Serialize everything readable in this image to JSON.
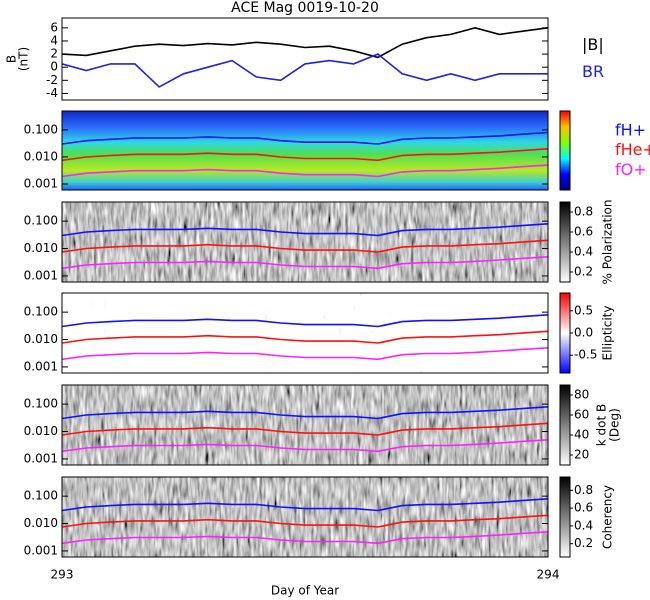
{
  "chart_data": [
    {
      "type": "line",
      "title": "ACE Mag 0019-10-20",
      "ylabel": [
        "B",
        "(nT)"
      ],
      "legend": true,
      "xlim": [
        293,
        294
      ],
      "ylim": [
        -5,
        7.5
      ],
      "yticks": [
        -4,
        -2,
        0,
        2,
        4,
        6
      ],
      "x": [
        293,
        293.05,
        293.1,
        293.15,
        293.2,
        293.25,
        293.3,
        293.35,
        293.4,
        293.45,
        293.5,
        293.55,
        293.6,
        293.65,
        293.7,
        293.75,
        293.8,
        293.85,
        293.9,
        293.95,
        294
      ],
      "series": [
        {
          "name": "|B|",
          "color": "#000000",
          "values": [
            2,
            1.8,
            2.5,
            3.2,
            3.5,
            3.3,
            3.6,
            3.4,
            3.8,
            3.5,
            3,
            3.2,
            2.5,
            1.5,
            3.5,
            4.5,
            5,
            6,
            5,
            5.5,
            6
          ]
        },
        {
          "name": "BR",
          "color": "#2020e0",
          "values": [
            0.5,
            -0.5,
            0.5,
            0.5,
            -3,
            -1,
            0,
            1,
            -1.5,
            -2,
            0.5,
            1,
            0.5,
            2,
            -1,
            -2,
            -1,
            -2,
            -1,
            -1,
            -1
          ]
        }
      ]
    },
    {
      "type": "line",
      "ylog": true,
      "legend": true,
      "background": "jet",
      "colorbar": {
        "colormap": "jet"
      },
      "xlim": [
        293,
        294
      ],
      "ylim": [
        0.0006,
        0.5
      ],
      "yticks": [
        0.001,
        {
          "value": 0.01,
          "label": "0.010"
        },
        {
          "value": 0.1,
          "label": "0.100"
        }
      ],
      "x": [
        293,
        293.05,
        293.1,
        293.15,
        293.2,
        293.25,
        293.3,
        293.35,
        293.4,
        293.45,
        293.5,
        293.55,
        293.6,
        293.65,
        293.7,
        293.75,
        293.8,
        293.85,
        293.9,
        293.95,
        294
      ],
      "series": [
        {
          "name": "fH+",
          "color": "#1010ff",
          "values": [
            0.03,
            0.04,
            0.045,
            0.05,
            0.05,
            0.05,
            0.055,
            0.05,
            0.05,
            0.04,
            0.035,
            0.035,
            0.035,
            0.03,
            0.045,
            0.05,
            0.05,
            0.055,
            0.06,
            0.07,
            0.08
          ]
        },
        {
          "name": "fHe+",
          "color": "#ff1010",
          "values": [
            0.0075,
            0.01,
            0.0113,
            0.0125,
            0.0125,
            0.0125,
            0.0138,
            0.0125,
            0.0125,
            0.01,
            0.0088,
            0.0088,
            0.0088,
            0.0075,
            0.0113,
            0.0125,
            0.0125,
            0.0138,
            0.015,
            0.0175,
            0.02
          ]
        },
        {
          "name": "fO+",
          "color": "#ff20ff",
          "values": [
            0.0019,
            0.0025,
            0.0028,
            0.0031,
            0.0031,
            0.0031,
            0.0034,
            0.0031,
            0.0031,
            0.0025,
            0.0022,
            0.0022,
            0.0022,
            0.0019,
            0.0028,
            0.0031,
            0.0031,
            0.0034,
            0.0038,
            0.0044,
            0.005
          ]
        }
      ]
    },
    {
      "type": "line",
      "ylog": true,
      "background": "gray",
      "colorbar": {
        "colormap": "gray",
        "lim": [
          0.1,
          0.9
        ],
        "ticks": [
          0.2,
          0.4,
          0.6,
          0.8
        ],
        "label": [
          "% Polarization"
        ]
      },
      "xlim": [
        293,
        294
      ],
      "ylim": [
        0.0006,
        0.5
      ],
      "yticks": [
        0.001,
        {
          "value": 0.01,
          "label": "0.010"
        },
        {
          "value": 0.1,
          "label": "0.100"
        }
      ],
      "x": [
        293,
        293.05,
        293.1,
        293.15,
        293.2,
        293.25,
        293.3,
        293.35,
        293.4,
        293.45,
        293.5,
        293.55,
        293.6,
        293.65,
        293.7,
        293.75,
        293.8,
        293.85,
        293.9,
        293.95,
        294
      ],
      "series": [
        {
          "name": "fH+",
          "color": "#1010ff",
          "values": [
            0.03,
            0.04,
            0.045,
            0.05,
            0.05,
            0.05,
            0.055,
            0.05,
            0.05,
            0.04,
            0.035,
            0.035,
            0.035,
            0.03,
            0.045,
            0.05,
            0.05,
            0.055,
            0.06,
            0.07,
            0.08
          ]
        },
        {
          "name": "fHe+",
          "color": "#ff1010",
          "values": [
            0.0075,
            0.01,
            0.0113,
            0.0125,
            0.0125,
            0.0125,
            0.0138,
            0.0125,
            0.0125,
            0.01,
            0.0088,
            0.0088,
            0.0088,
            0.0075,
            0.0113,
            0.0125,
            0.0125,
            0.0138,
            0.015,
            0.0175,
            0.02
          ]
        },
        {
          "name": "fO+",
          "color": "#ff20ff",
          "values": [
            0.0019,
            0.0025,
            0.0028,
            0.0031,
            0.0031,
            0.0031,
            0.0034,
            0.0031,
            0.0031,
            0.0025,
            0.0022,
            0.0022,
            0.0022,
            0.0019,
            0.0028,
            0.0031,
            0.0031,
            0.0034,
            0.0038,
            0.0044,
            0.005
          ]
        }
      ]
    },
    {
      "type": "line",
      "ylog": true,
      "background": "rwb",
      "colorbar": {
        "colormap": "rwb",
        "lim": [
          -0.9,
          0.9
        ],
        "ticks": [
          0.5,
          {
            "value": 0,
            "label": "0.0"
          },
          -0.5
        ],
        "label": [
          "Ellipticity"
        ]
      },
      "xlim": [
        293,
        294
      ],
      "ylim": [
        0.0006,
        0.5
      ],
      "yticks": [
        0.001,
        {
          "value": 0.01,
          "label": "0.010"
        },
        {
          "value": 0.1,
          "label": "0.100"
        }
      ],
      "x": [
        293,
        293.05,
        293.1,
        293.15,
        293.2,
        293.25,
        293.3,
        293.35,
        293.4,
        293.45,
        293.5,
        293.55,
        293.6,
        293.65,
        293.7,
        293.75,
        293.8,
        293.85,
        293.9,
        293.95,
        294
      ],
      "series": [
        {
          "name": "fH+",
          "color": "#1010ff",
          "values": [
            0.03,
            0.04,
            0.045,
            0.05,
            0.05,
            0.05,
            0.055,
            0.05,
            0.05,
            0.04,
            0.035,
            0.035,
            0.035,
            0.03,
            0.045,
            0.05,
            0.05,
            0.055,
            0.06,
            0.07,
            0.08
          ]
        },
        {
          "name": "fHe+",
          "color": "#ff1010",
          "values": [
            0.0075,
            0.01,
            0.0113,
            0.0125,
            0.0125,
            0.0125,
            0.0138,
            0.0125,
            0.0125,
            0.01,
            0.0088,
            0.0088,
            0.0088,
            0.0075,
            0.0113,
            0.0125,
            0.0125,
            0.0138,
            0.015,
            0.0175,
            0.02
          ]
        },
        {
          "name": "fO+",
          "color": "#ff20ff",
          "values": [
            0.0019,
            0.0025,
            0.0028,
            0.0031,
            0.0031,
            0.0031,
            0.0034,
            0.0031,
            0.0031,
            0.0025,
            0.0022,
            0.0022,
            0.0022,
            0.0019,
            0.0028,
            0.0031,
            0.0031,
            0.0034,
            0.0038,
            0.0044,
            0.005
          ]
        }
      ]
    },
    {
      "type": "line",
      "ylog": true,
      "background": "gray",
      "colorbar": {
        "colormap": "gray",
        "lim": [
          10,
          90
        ],
        "ticks": [
          20,
          40,
          60,
          80
        ],
        "label": [
          "k dot B",
          "(Deg)"
        ]
      },
      "xlim": [
        293,
        294
      ],
      "ylim": [
        0.0006,
        0.5
      ],
      "yticks": [
        0.001,
        {
          "value": 0.01,
          "label": "0.010"
        },
        {
          "value": 0.1,
          "label": "0.100"
        }
      ],
      "x": [
        293,
        293.05,
        293.1,
        293.15,
        293.2,
        293.25,
        293.3,
        293.35,
        293.4,
        293.45,
        293.5,
        293.55,
        293.6,
        293.65,
        293.7,
        293.75,
        293.8,
        293.85,
        293.9,
        293.95,
        294
      ],
      "series": [
        {
          "name": "fH+",
          "color": "#1010ff",
          "values": [
            0.03,
            0.04,
            0.045,
            0.05,
            0.05,
            0.05,
            0.055,
            0.05,
            0.05,
            0.04,
            0.035,
            0.035,
            0.035,
            0.03,
            0.045,
            0.05,
            0.05,
            0.055,
            0.06,
            0.07,
            0.08
          ]
        },
        {
          "name": "fHe+",
          "color": "#ff1010",
          "values": [
            0.0075,
            0.01,
            0.0113,
            0.0125,
            0.0125,
            0.0125,
            0.0138,
            0.0125,
            0.0125,
            0.01,
            0.0088,
            0.0088,
            0.0088,
            0.0075,
            0.0113,
            0.0125,
            0.0125,
            0.0138,
            0.015,
            0.0175,
            0.02
          ]
        },
        {
          "name": "fO+",
          "color": "#ff20ff",
          "values": [
            0.0019,
            0.0025,
            0.0028,
            0.0031,
            0.0031,
            0.0031,
            0.0034,
            0.0031,
            0.0031,
            0.0025,
            0.0022,
            0.0022,
            0.0022,
            0.0019,
            0.0028,
            0.0031,
            0.0031,
            0.0034,
            0.0038,
            0.0044,
            0.005
          ]
        }
      ]
    },
    {
      "type": "line",
      "ylog": true,
      "background": "gray",
      "colorbar": {
        "colormap": "gray",
        "lim": [
          0.05,
          0.95
        ],
        "ticks": [
          0.2,
          0.4,
          0.6,
          0.8
        ],
        "label": [
          "Coherency"
        ]
      },
      "xlim": [
        293,
        294
      ],
      "ylim": [
        0.0006,
        0.5
      ],
      "xticks": [
        293,
        294
      ],
      "xlabel": "Day of Year",
      "yticks": [
        0.001,
        {
          "value": 0.01,
          "label": "0.010"
        },
        {
          "value": 0.1,
          "label": "0.100"
        }
      ],
      "x": [
        293,
        293.05,
        293.1,
        293.15,
        293.2,
        293.25,
        293.3,
        293.35,
        293.4,
        293.45,
        293.5,
        293.55,
        293.6,
        293.65,
        293.7,
        293.75,
        293.8,
        293.85,
        293.9,
        293.95,
        294
      ],
      "series": [
        {
          "name": "fH+",
          "color": "#1010ff",
          "values": [
            0.03,
            0.04,
            0.045,
            0.05,
            0.05,
            0.05,
            0.055,
            0.05,
            0.05,
            0.04,
            0.035,
            0.035,
            0.035,
            0.03,
            0.045,
            0.05,
            0.05,
            0.055,
            0.06,
            0.07,
            0.08
          ]
        },
        {
          "name": "fHe+",
          "color": "#ff1010",
          "values": [
            0.0075,
            0.01,
            0.0113,
            0.0125,
            0.0125,
            0.0125,
            0.0138,
            0.0125,
            0.0125,
            0.01,
            0.0088,
            0.0088,
            0.0088,
            0.0075,
            0.0113,
            0.0125,
            0.0125,
            0.0138,
            0.015,
            0.0175,
            0.02
          ]
        },
        {
          "name": "fO+",
          "color": "#ff20ff",
          "values": [
            0.0019,
            0.0025,
            0.0028,
            0.0031,
            0.0031,
            0.0031,
            0.0034,
            0.0031,
            0.0031,
            0.0025,
            0.0022,
            0.0022,
            0.0022,
            0.0019,
            0.0028,
            0.0031,
            0.0031,
            0.0034,
            0.0038,
            0.0044,
            0.005
          ]
        }
      ]
    }
  ]
}
